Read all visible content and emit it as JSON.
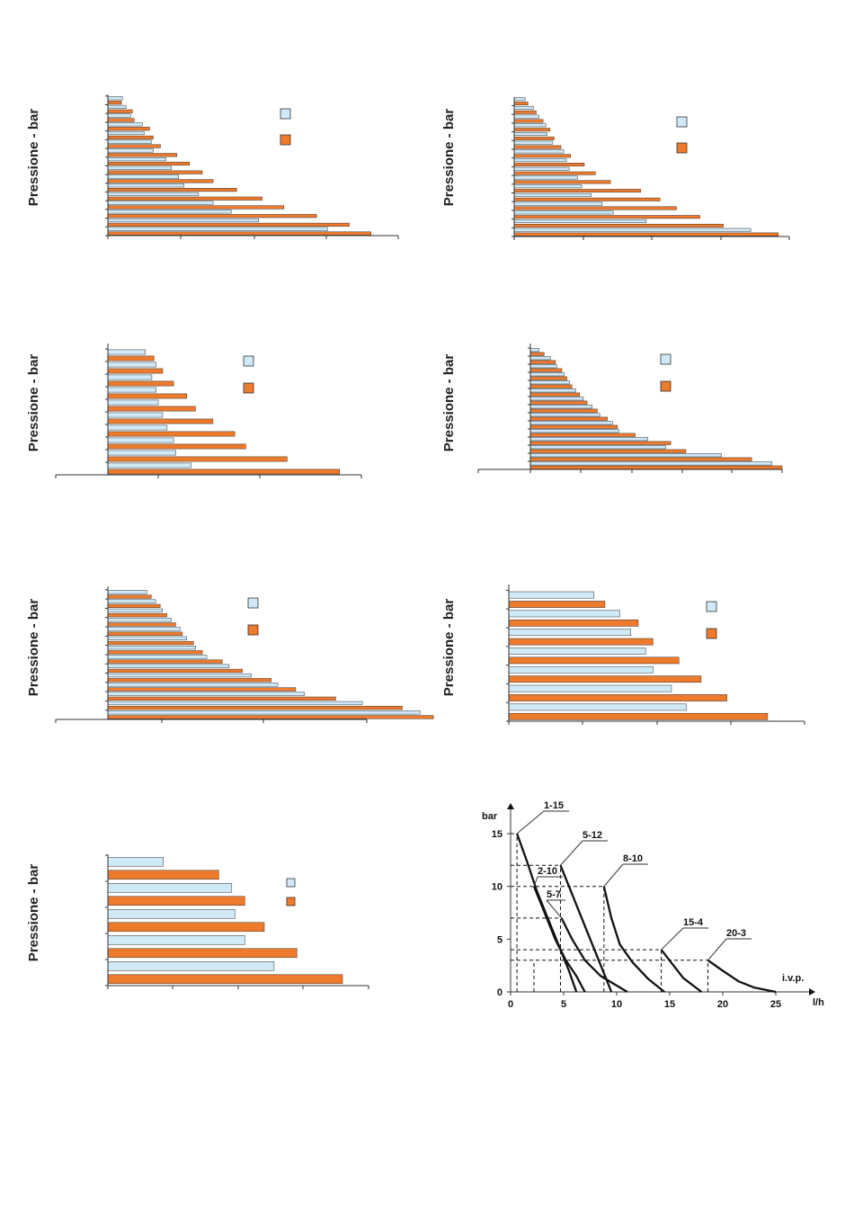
{
  "colors": {
    "series_a": "#cfe9f7",
    "series_b": "#ee7a2c",
    "stroke": "#333333"
  },
  "chart_data": [
    {
      "type": "bar",
      "orientation": "horizontal",
      "ylabel": "Pressione - bar",
      "bars_per_category": 2,
      "bars": [
        0.8,
        0.75,
        1.0,
        1.35,
        1.25,
        1.45,
        1.9,
        2.3,
        2.0,
        2.5,
        2.4,
        2.9,
        2.5,
        3.8,
        3.2,
        4.5,
        3.5,
        5.2,
        3.9,
        5.8,
        4.2,
        7.1,
        5.0,
        8.5,
        5.8,
        9.7,
        6.8,
        11.5,
        8.3,
        13.3,
        12.1,
        14.5
      ],
      "xlim": [
        0,
        16
      ]
    },
    {
      "type": "bar",
      "orientation": "horizontal",
      "ylabel": "Pressione - bar",
      "bars_per_category": 2,
      "bars": [
        0.8,
        1.0,
        1.4,
        1.6,
        1.8,
        2.1,
        2.3,
        2.6,
        2.4,
        2.9,
        2.8,
        3.4,
        3.6,
        4.1,
        3.8,
        5.1,
        4.0,
        5.9,
        4.6,
        7.0,
        4.9,
        9.2,
        5.6,
        10.6,
        6.4,
        11.8,
        7.2,
        13.5,
        9.6,
        15.2,
        17.2,
        19.2
      ],
      "xlim": [
        0,
        20
      ]
    },
    {
      "type": "bar",
      "orientation": "horizontal",
      "ylabel": "Pressione - bar",
      "bars_per_category": 2,
      "bars": [
        1.05,
        1.25,
        1.3,
        1.45,
        1.2,
        1.7,
        1.3,
        2.0,
        1.35,
        2.2,
        1.45,
        2.6,
        1.55,
        3.1,
        1.7,
        3.35,
        1.75,
        4.3,
        2.1,
        5.5
      ],
      "xlim": [
        -1,
        6
      ]
    },
    {
      "type": "bar",
      "orientation": "horizontal",
      "ylabel": "Pressione - bar",
      "bars_per_category": 2,
      "bars": [
        0.4,
        0.6,
        0.85,
        1.05,
        1.1,
        1.3,
        1.4,
        1.5,
        1.6,
        1.7,
        1.85,
        2.0,
        2.15,
        2.3,
        2.5,
        2.7,
        2.8,
        3.1,
        3.3,
        3.5,
        3.55,
        4.2,
        4.7,
        5.6,
        5.4,
        6.2,
        7.6,
        8.8,
        9.6,
        10.0
      ],
      "xlim": [
        -2,
        10
      ]
    },
    {
      "type": "bar",
      "orientation": "horizontal",
      "ylabel": "Pressione - bar",
      "bars_per_category": 2,
      "bars": [
        1.05,
        1.15,
        1.25,
        1.35,
        1.4,
        1.5,
        1.6,
        1.7,
        1.8,
        1.85,
        1.95,
        2.1,
        2.15,
        2.3,
        2.4,
        2.75,
        2.9,
        3.2,
        3.4,
        3.85,
        4.0,
        4.4,
        4.6,
        5.3,
        5.9,
        6.8,
        7.2,
        7.5
      ],
      "xlim": [
        -1,
        6
      ]
    },
    {
      "type": "bar",
      "orientation": "horizontal",
      "ylabel": "Pressione - bar",
      "bars_per_category": 2,
      "bars": [
        1.15,
        1.3,
        1.5,
        1.75,
        1.65,
        1.95,
        1.85,
        2.3,
        1.95,
        2.6,
        2.2,
        2.95,
        2.4,
        3.5
      ],
      "xlim": [
        0,
        4
      ]
    },
    {
      "type": "bar",
      "orientation": "horizontal",
      "ylabel": "Pressione - bar",
      "bars_per_category": 2,
      "bars": [
        0.85,
        1.7,
        1.9,
        2.1,
        1.95,
        2.4,
        2.1,
        2.9,
        2.55,
        3.6
      ],
      "xlim": [
        0,
        4
      ]
    },
    {
      "type": "line",
      "xlabel": "l/h",
      "ylabel": "bar",
      "xlim": [
        0,
        28
      ],
      "ylim": [
        0,
        17
      ],
      "x_ticks": [
        0,
        5,
        10,
        15,
        20,
        25
      ],
      "y_ticks": [
        0,
        5,
        10,
        15
      ],
      "annotation": "i.v.p.",
      "series": [
        {
          "name": "1-15",
          "points": [
            [
              0.6,
              15
            ],
            [
              1.5,
              12.5
            ],
            [
              2.5,
              9.5
            ],
            [
              3.5,
              7
            ],
            [
              4.5,
              4.5
            ],
            [
              5.5,
              2
            ],
            [
              6.2,
              0
            ]
          ]
        },
        {
          "name": "2-10",
          "points": [
            [
              2.2,
              10
            ],
            [
              3.2,
              7.5
            ],
            [
              4.2,
              5
            ],
            [
              5.2,
              3
            ],
            [
              6.2,
              1.5
            ],
            [
              7,
              0
            ]
          ]
        },
        {
          "name": "5-12",
          "points": [
            [
              4.7,
              12
            ],
            [
              5.7,
              9.5
            ],
            [
              6.7,
              7
            ],
            [
              7.7,
              4.5
            ],
            [
              8.7,
              2
            ],
            [
              9.5,
              0
            ]
          ]
        },
        {
          "name": "5-7",
          "points": [
            [
              4.8,
              7
            ],
            [
              5.8,
              5
            ],
            [
              7,
              3
            ],
            [
              8.5,
              1.5
            ],
            [
              11,
              0
            ]
          ]
        },
        {
          "name": "8-10",
          "points": [
            [
              8.8,
              10
            ],
            [
              9.5,
              7
            ],
            [
              10.3,
              4.5
            ],
            [
              11.5,
              2.8
            ],
            [
              13,
              1.2
            ],
            [
              14.5,
              0
            ]
          ]
        },
        {
          "name": "15-4",
          "points": [
            [
              14.2,
              4
            ],
            [
              15.2,
              2.7
            ],
            [
              16.3,
              1.3
            ],
            [
              18,
              0
            ]
          ]
        },
        {
          "name": "20-3",
          "points": [
            [
              18.6,
              3
            ],
            [
              20,
              2
            ],
            [
              21.5,
              1
            ],
            [
              23,
              0.4
            ],
            [
              25,
              0
            ]
          ]
        }
      ],
      "dashed_levels": [
        {
          "y": 15,
          "x": 0.6
        },
        {
          "y": 12,
          "x": 4.7
        },
        {
          "y": 10,
          "x": 8.8
        },
        {
          "y": 7,
          "x": 4.8
        },
        {
          "y": 4,
          "x": 14.2
        },
        {
          "y": 3,
          "x": 18.6
        }
      ],
      "dashed_verticals": [
        0.6,
        2.2,
        4.7,
        8.8,
        14.2,
        18.6
      ]
    }
  ]
}
